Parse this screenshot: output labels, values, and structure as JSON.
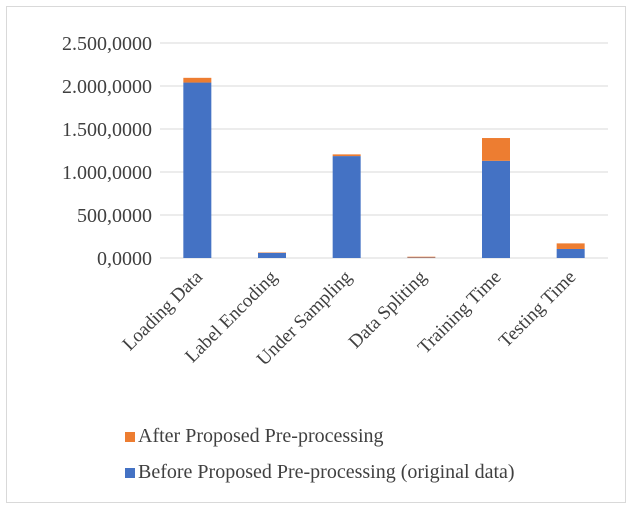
{
  "chart_data": {
    "type": "bar",
    "stacked": true,
    "title": "",
    "xlabel": "",
    "ylabel": "",
    "ylim": [
      0,
      2500
    ],
    "y_ticks": [
      0,
      500,
      1000,
      1500,
      2000,
      2500
    ],
    "y_tick_labels": [
      "0,0000",
      "500,0000",
      "1.000,0000",
      "1.500,0000",
      "2.000,0000",
      "2.500,0000"
    ],
    "grid": true,
    "legend_position": "bottom",
    "categories": [
      "Loading Data",
      "Label Encoding",
      "Under Sampling",
      "Data Spliting",
      "Training Time",
      "Testing Time"
    ],
    "series": [
      {
        "name": "Before Proposed Pre-processing (original data)",
        "color": "#4472c4",
        "values": [
          2040,
          60,
          1185,
          5,
          1130,
          105
        ]
      },
      {
        "name": "After Proposed Pre-processing",
        "color": "#ed7d31",
        "values": [
          55,
          5,
          20,
          10,
          265,
          65
        ]
      }
    ]
  }
}
